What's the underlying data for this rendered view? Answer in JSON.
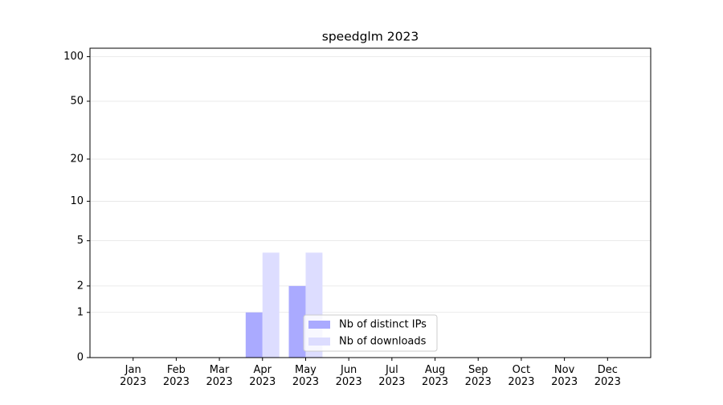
{
  "chart_data": {
    "type": "bar",
    "title": "speedglm 2023",
    "categories": [
      "Jan\n2023",
      "Feb\n2023",
      "Mar\n2023",
      "Apr\n2023",
      "May\n2023",
      "Jun\n2023",
      "Jul\n2023",
      "Aug\n2023",
      "Sep\n2023",
      "Oct\n2023",
      "Nov\n2023",
      "Dec\n2023"
    ],
    "series": [
      {
        "name": "Nb of distinct IPs",
        "color": "#aaaaff",
        "values": [
          0,
          0,
          0,
          1,
          2,
          0,
          0,
          0,
          0,
          0,
          0,
          0
        ]
      },
      {
        "name": "Nb of downloads",
        "color": "#ddddff",
        "values": [
          0,
          0,
          0,
          4,
          4,
          0,
          0,
          0,
          0,
          0,
          0,
          0
        ]
      }
    ],
    "yscale": "log1p",
    "ylim": [
      0,
      114
    ],
    "yticks": [
      0,
      1,
      2,
      5,
      10,
      20,
      50,
      100
    ],
    "grid": true,
    "legend": "lower center"
  }
}
